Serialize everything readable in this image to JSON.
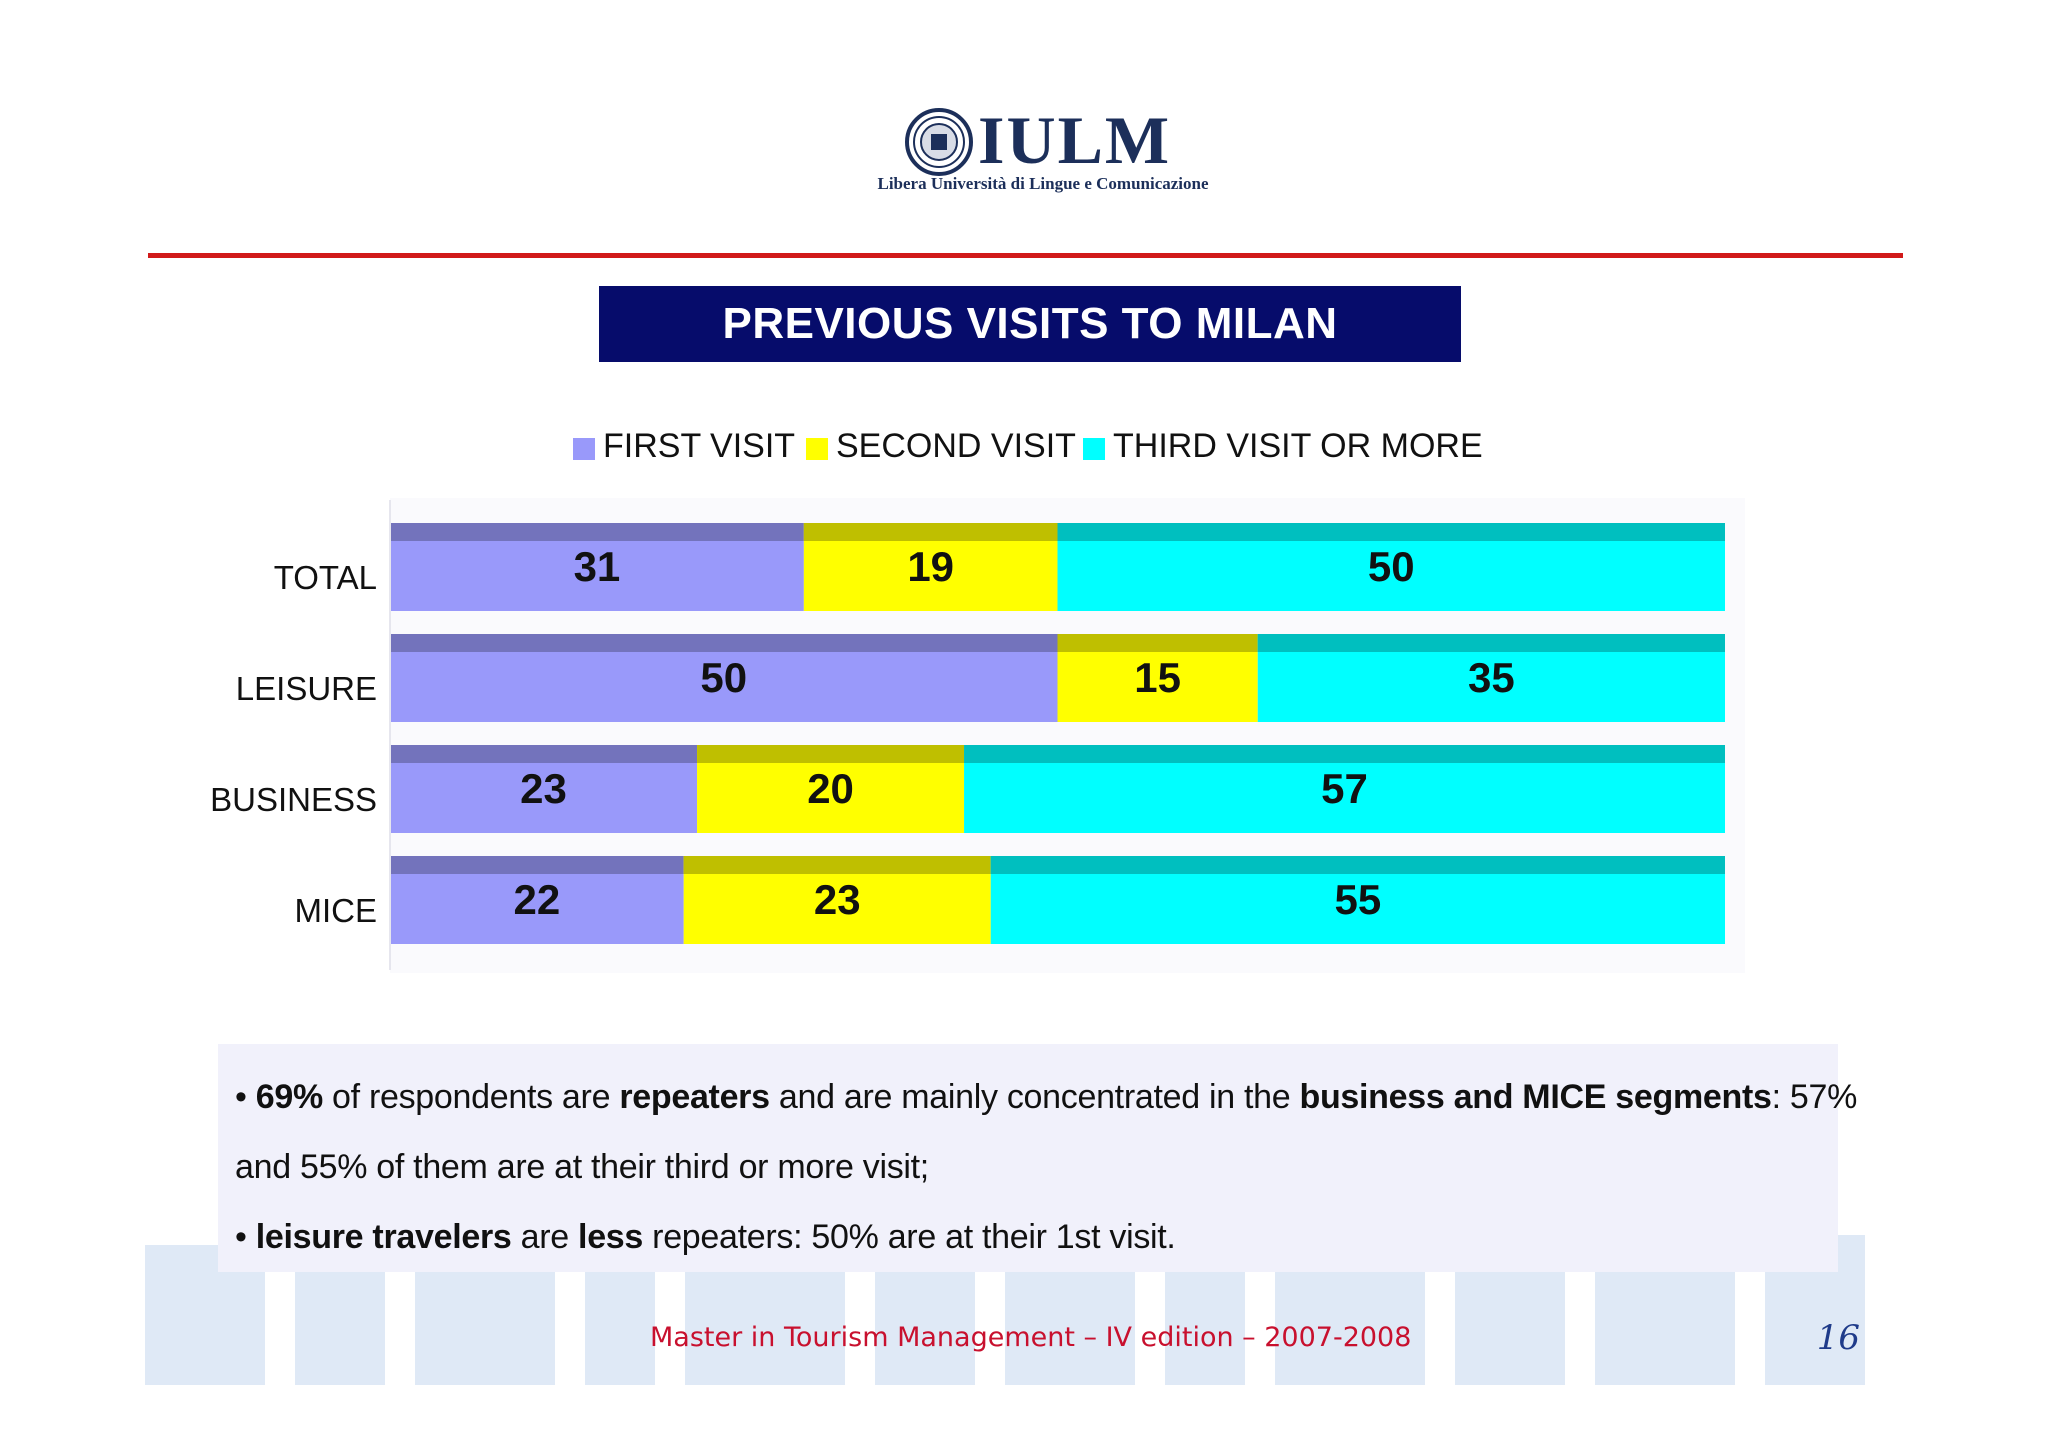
{
  "header": {
    "logo_text": "IULM",
    "logo_subtitle": "Libera Università di Lingue e Comunicazione"
  },
  "slide": {
    "title": "PREVIOUS VISITS TO MILAN"
  },
  "chart_data": {
    "type": "bar",
    "orientation": "horizontal",
    "stacked": true,
    "categories": [
      "TOTAL",
      "LEISURE",
      "BUSINESS",
      "MICE"
    ],
    "series": [
      {
        "name": "FIRST VISIT",
        "color": "#9999fa",
        "values": [
          31,
          50,
          23,
          22
        ]
      },
      {
        "name": "SECOND VISIT",
        "color": "#ffff00",
        "values": [
          19,
          15,
          20,
          23
        ]
      },
      {
        "name": "THIRD VISIT OR MORE",
        "color": "#00ffff",
        "values": [
          50,
          35,
          57,
          55
        ]
      }
    ],
    "xlim": [
      0,
      100
    ],
    "legend_position": "top",
    "grid": false,
    "data_labels": true
  },
  "notes": {
    "line1": {
      "bullet": "• ",
      "p1": "69%",
      "p2": " of respondents are ",
      "p3": "repeaters",
      "p4": " and are mainly concentrated in the ",
      "p5": "business and MICE segments",
      "p6": ": 57%"
    },
    "line2": "and  55% of them are at their third or more visit;",
    "line3": {
      "bullet": "• ",
      "p1": "leisure travelers",
      "p2": " are ",
      "p3": "less",
      "p4": " repeaters: 50% are at their 1st visit."
    }
  },
  "footer": {
    "text": "Master in Tourism Management – IV edition – 2007-2008",
    "page_number": "16"
  }
}
